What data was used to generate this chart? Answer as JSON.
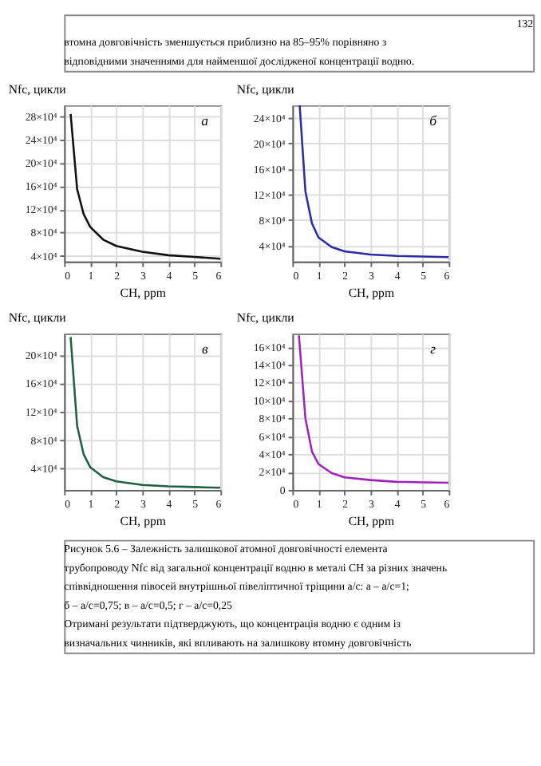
{
  "chart_data": [
    {
      "type": "line",
      "annotations": [
        "а",
        "132",
        "втомна довговічність зменшується приблизно на 85–95% порівняно з",
        "відповідними значеннями для найменшої дослідженої концентрації водню."
      ],
      "xlabel": "CH, ppm",
      "ylabel": "Nfc, цикли",
      "xlim": [
        0,
        6
      ],
      "xticks": [
        0,
        1,
        2,
        3,
        4,
        5,
        6
      ],
      "ylim": [
        30000,
        300000
      ],
      "yticks": [
        {
          "value": 40000,
          "label": "4×10⁴"
        },
        {
          "value": 80000,
          "label": "8×10⁴"
        },
        {
          "value": 120000,
          "label": "12×10⁴"
        },
        {
          "value": 160000,
          "label": "16×10⁴"
        },
        {
          "value": 200000,
          "label": "20×10⁴"
        },
        {
          "value": 240000,
          "label": "24×10⁴"
        },
        {
          "value": 280000,
          "label": "28×10⁴"
        }
      ],
      "grid": true,
      "series": [
        {
          "color": "#111111",
          "x": [
            0.25,
            0.5,
            0.75,
            1,
            1.5,
            2,
            3,
            4,
            5,
            6
          ],
          "values": [
            285000,
            155000,
            112000,
            90000,
            68000,
            57000,
            47000,
            41000,
            38000,
            35000
          ]
        }
      ]
    },
    {
      "type": "line",
      "annotations": [
        "б"
      ],
      "xlabel": "CH, ppm",
      "ylabel": "Nfc, цикли",
      "xlim": [
        0,
        6
      ],
      "xticks": [
        0,
        1,
        2,
        3,
        4,
        5,
        6
      ],
      "ylim": [
        15000,
        260000
      ],
      "yticks": [
        {
          "value": 40000,
          "label": "4×10⁴"
        },
        {
          "value": 80000,
          "label": "8×10⁴"
        },
        {
          "value": 120000,
          "label": "12×10⁴"
        },
        {
          "value": 160000,
          "label": "16×10⁴"
        },
        {
          "value": 200000,
          "label": "20×10⁴"
        },
        {
          "value": 240000,
          "label": "24×10⁴"
        }
      ],
      "grid": true,
      "series": [
        {
          "color": "#2b2ba8",
          "x": [
            0.28,
            0.5,
            0.75,
            1,
            1.5,
            2,
            3,
            4,
            5,
            6
          ],
          "values": [
            260000,
            125000,
            75000,
            53000,
            38000,
            31000,
            26000,
            24000,
            23000,
            22000
          ]
        }
      ]
    },
    {
      "type": "line",
      "annotations": [
        "в"
      ],
      "xlabel": "CH, ppm",
      "ylabel": "Nfc, цикли",
      "xlim": [
        0,
        6
      ],
      "xticks": [
        0,
        1,
        2,
        3,
        4,
        5,
        6
      ],
      "ylim": [
        10000,
        230000
      ],
      "yticks": [
        {
          "value": 40000,
          "label": "4×10⁴"
        },
        {
          "value": 80000,
          "label": "8×10⁴"
        },
        {
          "value": 120000,
          "label": "12×10⁴"
        },
        {
          "value": 160000,
          "label": "16×10⁴"
        },
        {
          "value": 200000,
          "label": "20×10⁴"
        }
      ],
      "grid": true,
      "series": [
        {
          "color": "#1e6040",
          "x": [
            0.25,
            0.5,
            0.75,
            1,
            1.5,
            2,
            3,
            4,
            5,
            6
          ],
          "values": [
            225000,
            100000,
            60000,
            42000,
            28000,
            22000,
            17000,
            15000,
            14000,
            13000
          ]
        }
      ]
    },
    {
      "type": "line",
      "annotations": [
        "г",
        "Рисунок 5.6 – Залежність залишкової атомної довговічності елемента",
        "трубопроводу Nfc від загальної концентрації водню в металі CH за різних значень",
        "співвідношення півосей внутрішньої півеліптичної тріщини a/c: а – a/c=1;",
        "б – a/c=0,75; в – a/c=0,5; г – a/c=0,25",
        "Отримані результати підтверджують, що концентрація водню є одним із",
        "визначальних чинників, які впливають на залишкову втомну довговічність"
      ],
      "xlabel": "CH, ppm",
      "ylabel": "Nfc, цикли",
      "xlim": [
        0,
        6
      ],
      "xticks": [
        0,
        1,
        2,
        3,
        4,
        5,
        6
      ],
      "ylim": [
        0,
        175000
      ],
      "yticks": [
        0,
        {
          "value": 20000,
          "label": "2×10⁴"
        },
        {
          "value": 40000,
          "label": "4×10⁴"
        },
        {
          "value": 60000,
          "label": "6×10⁴"
        },
        {
          "value": 80000,
          "label": "8×10⁴"
        },
        {
          "value": 100000,
          "label": "10×10⁴"
        },
        {
          "value": 120000,
          "label": "12×10⁴"
        },
        {
          "value": 140000,
          "label": "14×10⁴"
        },
        {
          "value": 160000,
          "label": "16×10⁴"
        }
      ],
      "grid": true,
      "series": [
        {
          "color": "#a020c0",
          "x": [
            0.25,
            0.5,
            0.75,
            1,
            1.5,
            2,
            3,
            4,
            5,
            6
          ],
          "values": [
            173000,
            80000,
            43000,
            29000,
            19000,
            14000,
            11000,
            9000,
            8500,
            8000
          ]
        }
      ]
    }
  ]
}
